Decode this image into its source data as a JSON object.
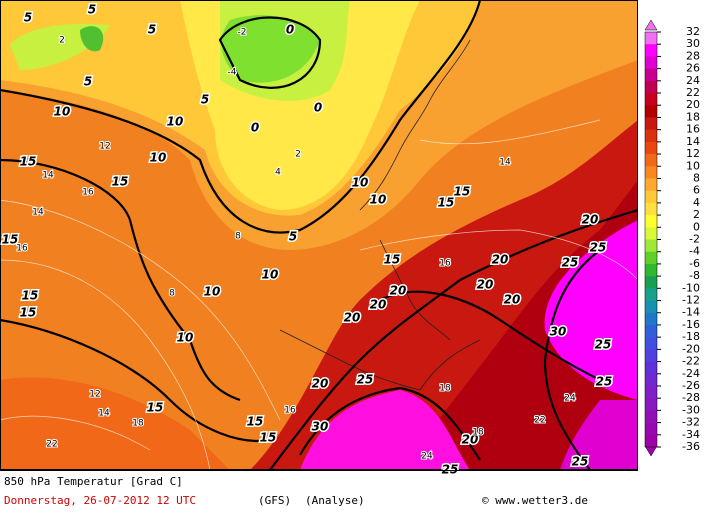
{
  "map": {
    "contour_labels": [
      "5",
      "5",
      "5",
      "5",
      "5",
      "0",
      "0",
      "0",
      "10",
      "10",
      "10",
      "15",
      "15",
      "15",
      "15",
      "15",
      "10",
      "10",
      "10",
      "10",
      "10",
      "5",
      "15",
      "15",
      "15",
      "20",
      "20",
      "20",
      "20",
      "20",
      "20",
      "20",
      "25",
      "25",
      "30",
      "25",
      "25",
      "20",
      "25",
      "30",
      "15",
      "15",
      "15",
      "20",
      "25",
      "25"
    ],
    "small_labels": [
      "2",
      "-4",
      "-2",
      "4",
      "2",
      "12",
      "14",
      "16",
      "14",
      "16",
      "22",
      "12",
      "14",
      "18",
      "16",
      "18",
      "14",
      "24",
      "18",
      "22",
      "24",
      "16",
      "8",
      "8"
    ]
  },
  "colorbar": {
    "labels": [
      "32",
      "30",
      "28",
      "26",
      "24",
      "22",
      "20",
      "18",
      "16",
      "14",
      "12",
      "10",
      "8",
      "6",
      "4",
      "2",
      "0",
      "-2",
      "-4",
      "-6",
      "-8",
      "-10",
      "-12",
      "-14",
      "-16",
      "-18",
      "-20",
      "-22",
      "-24",
      "-26",
      "-28",
      "-30",
      "-32",
      "-34",
      "-36"
    ],
    "colors": [
      "#f070f0",
      "#ff00ff",
      "#e000d0",
      "#c80090",
      "#c00050",
      "#c80020",
      "#b00000",
      "#c81810",
      "#d83010",
      "#e84810",
      "#f06818",
      "#f88820",
      "#ffa830",
      "#ffc838",
      "#ffe040",
      "#ffff30",
      "#d8f838",
      "#a0e838",
      "#60d028",
      "#30b830",
      "#18a050",
      "#18a088",
      "#1890b0",
      "#2078c8",
      "#3060d8",
      "#4050e0",
      "#5040e0",
      "#6030d8",
      "#7028d0",
      "#8020c8",
      "#8818c0",
      "#9010b8",
      "#9808b0",
      "#a000a8"
    ]
  },
  "footer": {
    "title": "850 hPa Temperatur [Grad C]",
    "date": "Donnerstag, 26-07-2012  12 UTC",
    "model": "(GFS)",
    "run": "(Analyse)",
    "credit": "© www.wetter3.de"
  }
}
